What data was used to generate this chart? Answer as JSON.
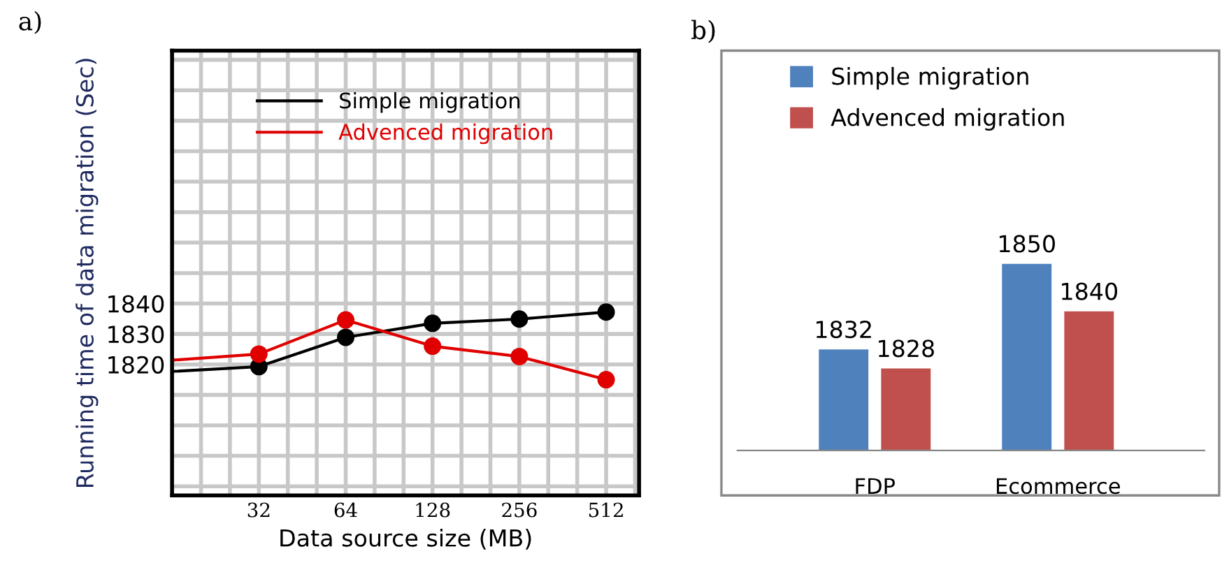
{
  "chart_data": [
    {
      "type": "line",
      "title": "a)",
      "xlabel": "Data source size (MB)",
      "ylabel": "Running time of data migration (Sec)",
      "x": [
        16,
        32,
        64,
        128,
        256,
        512
      ],
      "series": [
        {
          "name": "Simple migration",
          "color": "#000000",
          "values": [
            1817.7,
            1819.3,
            1828.9,
            1833.5,
            1834.9,
            1837.2
          ]
        },
        {
          "name": "Advenced migration",
          "color": "#e00000",
          "values": [
            1821.4,
            1823.4,
            1834.6,
            1826,
            1822.6,
            1815
          ]
        }
      ],
      "log": "x",
      "xlim": [
        16,
        666
      ],
      "ylim": [
        1777,
        1923
      ],
      "xticks": [
        {
          "value": 20.16,
          "label": null
        },
        {
          "value": 25.4,
          "label": null
        },
        32,
        {
          "value": 40.32,
          "label": null
        },
        {
          "value": 50.8,
          "label": null
        },
        64,
        {
          "value": 80.63,
          "label": null
        },
        {
          "value": 101.6,
          "label": null
        },
        128,
        {
          "value": 161.3,
          "label": null
        },
        {
          "value": 203.2,
          "label": null
        },
        256,
        {
          "value": 322.5,
          "label": null
        },
        {
          "value": 406.4,
          "label": null
        },
        512,
        {
          "value": 645.1,
          "label": null
        }
      ],
      "yticks": [
        {
          "value": 1780,
          "label": null
        },
        {
          "value": 1790,
          "label": null
        },
        {
          "value": 1800,
          "label": null
        },
        {
          "value": 1810,
          "label": null
        },
        1820,
        1830,
        1840,
        {
          "value": 1850,
          "label": null
        },
        {
          "value": 1860,
          "label": null
        },
        {
          "value": 1870,
          "label": null
        },
        {
          "value": 1880,
          "label": null
        },
        {
          "value": 1890,
          "label": null
        },
        {
          "value": 1900,
          "label": null
        },
        {
          "value": 1910,
          "label": null
        },
        {
          "value": 1920,
          "label": null
        }
      ],
      "grid": true,
      "legend": "top",
      "marker": "circle",
      "line_style": "solid"
    },
    {
      "type": "bar",
      "title": "b)",
      "categories": [
        "FDP",
        "Ecommerce"
      ],
      "series": [
        {
          "name": "Simple migration",
          "color": "#4f81bd",
          "values": [
            1832,
            1850
          ]
        },
        {
          "name": "Advenced migration",
          "color": "#c0504d",
          "values": [
            1828,
            1840
          ]
        }
      ],
      "ylim": [
        1811,
        1895
      ],
      "data_labels": true,
      "tick_labels": "x",
      "legend": "top left"
    }
  ]
}
